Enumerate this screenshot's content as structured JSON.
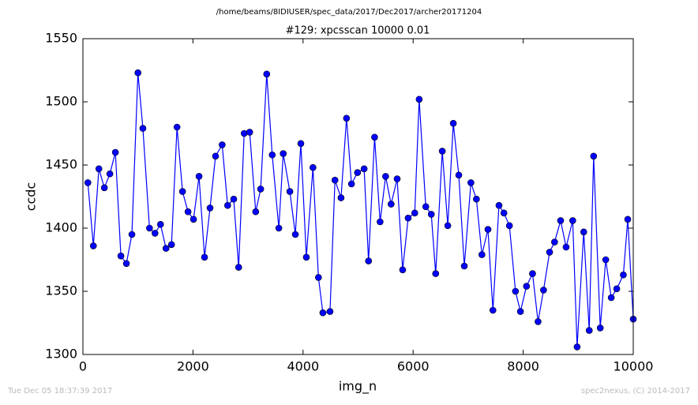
{
  "chart_data": {
    "type": "line",
    "suptitle": "/home/beams/8IDIUSER/spec_data/2017/Dec2017/archer20171204",
    "title": "#129: xpcsscan 10000 0.01",
    "xlabel": "img_n",
    "ylabel": "ccdc",
    "footer_left": "Tue Dec 05 18:37:39 2017",
    "footer_right": "spec2nexus, (C) 2014-2017",
    "xlim": [
      0,
      10000
    ],
    "xticks": [
      0,
      2000,
      4000,
      6000,
      8000,
      10000
    ],
    "ylim": [
      1300,
      1550
    ],
    "yticks": [
      1300,
      1350,
      1400,
      1450,
      1500,
      1550
    ],
    "grid": false,
    "series": [
      {
        "name": "ccdc",
        "color": "#0000ff",
        "x": [
          90,
          190,
          290,
          390,
          490,
          590,
          690,
          790,
          890,
          1000,
          1090,
          1210,
          1310,
          1410,
          1510,
          1610,
          1710,
          1810,
          1910,
          2010,
          2110,
          2210,
          2310,
          2410,
          2530,
          2630,
          2740,
          2830,
          2930,
          3030,
          3140,
          3230,
          3340,
          3440,
          3560,
          3640,
          3760,
          3860,
          3960,
          4060,
          4180,
          4280,
          4360,
          4490,
          4580,
          4690,
          4790,
          4880,
          4990,
          5110,
          5190,
          5300,
          5400,
          5500,
          5600,
          5710,
          5810,
          5910,
          6030,
          6110,
          6230,
          6330,
          6410,
          6530,
          6630,
          6730,
          6830,
          6930,
          7050,
          7150,
          7250,
          7360,
          7450,
          7560,
          7650,
          7750,
          7860,
          7950,
          8060,
          8170,
          8270,
          8370,
          8480,
          8570,
          8680,
          8780,
          8900,
          8980,
          9100,
          9200,
          9280,
          9400,
          9500,
          9600,
          9700,
          9820,
          9900,
          10000
        ],
        "values": [
          1436,
          1386,
          1447,
          1432,
          1443,
          1460,
          1378,
          1372,
          1395,
          1523,
          1479,
          1400,
          1396,
          1403,
          1384,
          1387,
          1480,
          1429,
          1413,
          1407,
          1441,
          1377,
          1416,
          1457,
          1466,
          1418,
          1423,
          1369,
          1475,
          1476,
          1413,
          1431,
          1522,
          1458,
          1400,
          1459,
          1429,
          1395,
          1467,
          1377,
          1448,
          1361,
          1333,
          1334,
          1438,
          1424,
          1487,
          1435,
          1444,
          1447,
          1374,
          1472,
          1405,
          1441,
          1419,
          1439,
          1367,
          1408,
          1412,
          1502,
          1417,
          1411,
          1364,
          1461,
          1402,
          1483,
          1442,
          1370,
          1436,
          1423,
          1379,
          1399,
          1335,
          1418,
          1412,
          1402,
          1350,
          1334,
          1354,
          1364,
          1326,
          1351,
          1381,
          1389,
          1406,
          1385,
          1406,
          1306,
          1397,
          1319,
          1457,
          1321,
          1375,
          1345,
          1352,
          1363,
          1407,
          1328
        ]
      }
    ]
  }
}
